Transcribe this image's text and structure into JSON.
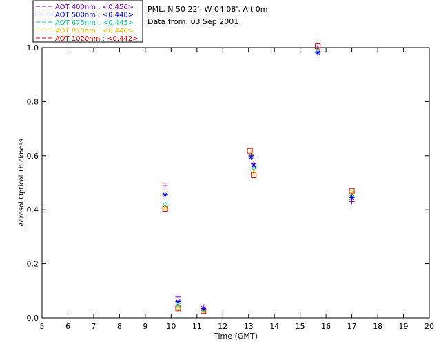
{
  "chart_data": {
    "type": "scatter",
    "title": "",
    "xlabel": "Time (GMT)",
    "ylabel": "Aerosol Optical Thickness",
    "xlim": [
      5,
      20
    ],
    "ylim": [
      0.0,
      1.0
    ],
    "xticks": [
      "5",
      "6",
      "7",
      "8",
      "9",
      "10",
      "11",
      "12",
      "13",
      "14",
      "15",
      "16",
      "17",
      "18",
      "19",
      "20"
    ],
    "yticks": [
      "0.0",
      "0.2",
      "0.4",
      "0.6",
      "0.8",
      "1.0"
    ],
    "info": [
      "PML, N 50 22', W 04 08', Alt 0m",
      "Data from: 03 Sep 2001"
    ],
    "series": [
      {
        "name": "AOT  400nm : <0.456>",
        "color": "#7a00b0",
        "marker": "plus",
        "x": [
          9.77,
          10.27,
          11.25,
          13.1,
          13.2,
          15.68,
          17.0
        ],
        "y": [
          0.49,
          0.077,
          0.04,
          0.6,
          0.57,
          1.0,
          0.43
        ]
      },
      {
        "name": "AOT  500nm : <0.448>",
        "color": "#0000e8",
        "marker": "asterisk",
        "x": [
          9.77,
          10.27,
          11.25,
          13.1,
          13.2,
          15.68,
          17.0
        ],
        "y": [
          0.455,
          0.06,
          0.035,
          0.595,
          0.565,
          0.98,
          0.445
        ]
      },
      {
        "name": "AOT  675nm : <0.445>",
        "color": "#00d088",
        "marker": "diamond",
        "x": [
          9.77,
          10.27,
          11.25,
          13.1,
          13.2,
          15.68,
          17.0
        ],
        "y": [
          0.42,
          0.045,
          0.03,
          0.6,
          0.555,
          0.99,
          0.45
        ]
      },
      {
        "name": "AOT  870nm : <0.446>",
        "color": "#ffc000",
        "marker": "triangle",
        "x": [
          9.77,
          10.27,
          11.25,
          13.1,
          13.2,
          15.68,
          17.0
        ],
        "y": [
          0.41,
          0.04,
          0.028,
          0.61,
          0.54,
          1.0,
          0.465
        ]
      },
      {
        "name": "AOT 1020nm : <0.442>",
        "color": "#e00000",
        "marker": "square",
        "x": [
          9.77,
          10.27,
          11.25,
          13.05,
          13.2,
          15.68,
          17.0
        ],
        "y": [
          0.403,
          0.035,
          0.025,
          0.618,
          0.528,
          1.005,
          0.47
        ]
      }
    ]
  }
}
